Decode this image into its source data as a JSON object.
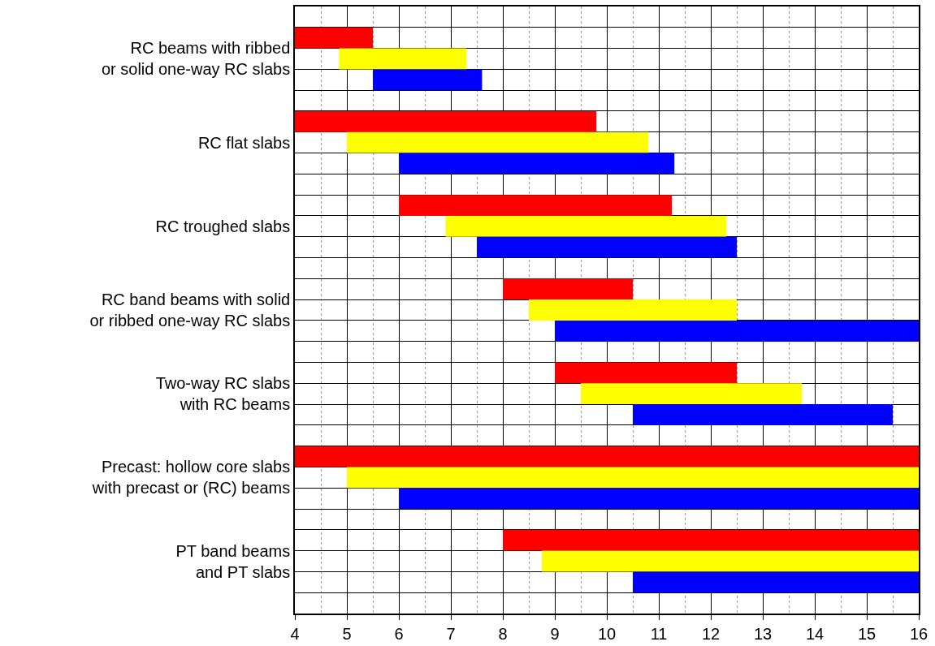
{
  "chart_data": {
    "type": "bar",
    "orientation": "horizontal",
    "categories": [
      "RC beams with ribbed\nor solid one-way RC slabs",
      "RC flat slabs",
      "RC troughed slabs",
      "RC band beams with solid\nor ribbed one-way RC slabs",
      "Two-way RC slabs\nwith RC beams",
      "Precast: hollow core slabs\nwith precast or (RC) beams",
      "PT band beams\nand PT slabs"
    ],
    "series": [
      {
        "color": "#ff0000",
        "base": [
          4,
          4,
          6,
          8,
          9,
          4,
          8
        ],
        "values": [
          1.5,
          5.8,
          5.25,
          2.5,
          3.5,
          12,
          8
        ]
      },
      {
        "color": "#ffff00",
        "base": [
          4.85,
          5,
          6.9,
          8.5,
          9.5,
          5,
          8.75
        ],
        "values": [
          2.45,
          5.8,
          5.4,
          4,
          4.25,
          11,
          7.25
        ]
      },
      {
        "color": "#0000ff",
        "base": [
          5.5,
          6,
          7.5,
          9,
          10.5,
          6,
          10.5
        ],
        "values": [
          2.1,
          5.3,
          5,
          7,
          5,
          10,
          5.5
        ]
      }
    ],
    "xlim": [
      4,
      16
    ],
    "xticks": [
      4,
      {
        "value": 4.5,
        "label": null
      },
      5,
      {
        "value": 5.5,
        "label": null
      },
      6,
      {
        "value": 6.5,
        "label": null
      },
      7,
      {
        "value": 7.5,
        "label": null
      },
      8,
      {
        "value": 8.5,
        "label": null
      },
      9,
      {
        "value": 9.5,
        "label": null
      },
      10,
      {
        "value": 10.5,
        "label": null
      },
      11,
      {
        "value": 11.5,
        "label": null
      },
      12,
      {
        "value": 12.5,
        "label": null
      },
      13,
      {
        "value": 13.5,
        "label": null
      },
      14,
      {
        "value": 14.5,
        "label": null
      },
      15,
      {
        "value": 15.5,
        "label": null
      },
      16
    ],
    "grid": true
  }
}
